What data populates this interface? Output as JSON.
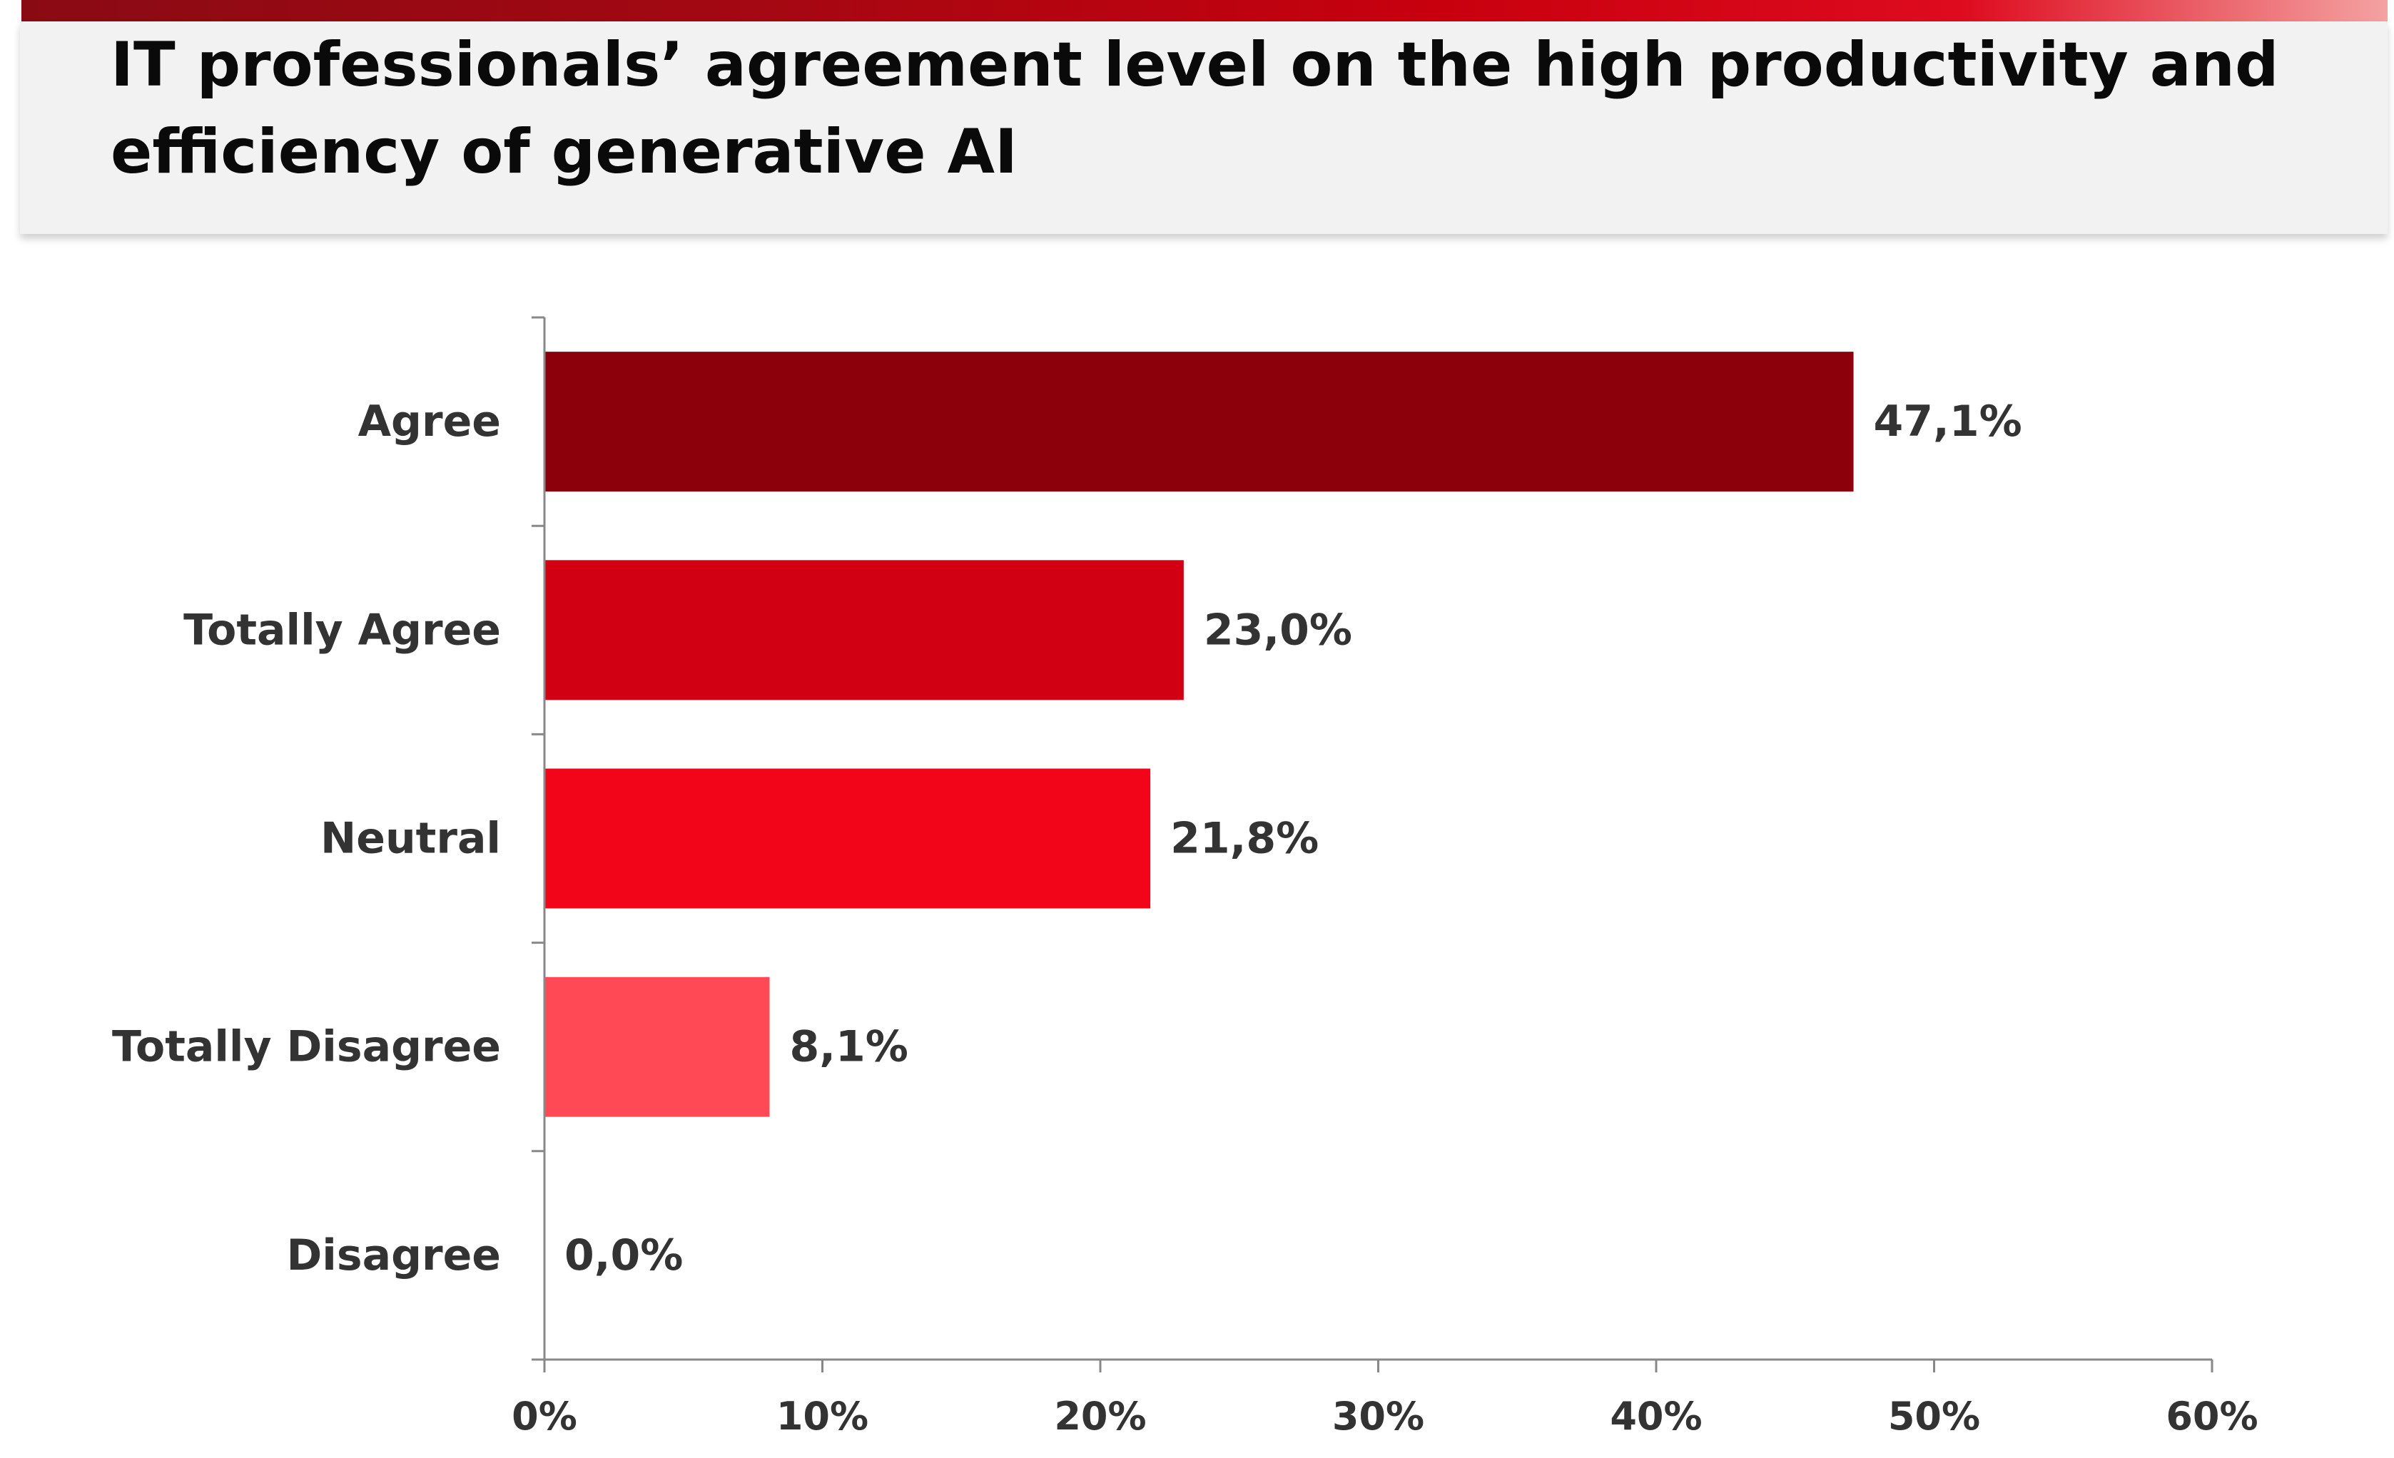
{
  "header": {
    "title": "IT professionals’ agreement level on the high productivity and efficiency of generative AI"
  },
  "chart_data": {
    "type": "bar",
    "orientation": "horizontal",
    "categories": [
      "Agree",
      "Totally Agree",
      "Neutral",
      "Totally Disagree",
      "Disagree"
    ],
    "values": [
      47.1,
      23.0,
      21.8,
      8.1,
      0.0
    ],
    "value_labels": [
      "47,1%",
      "23,0%",
      "21,8%",
      "8,1%",
      "0,0%"
    ],
    "bar_colors": [
      "#8b000b",
      "#d10013",
      "#f20519",
      "#ff4a55",
      "#ff8a90"
    ],
    "xlim": [
      0,
      60
    ],
    "x_ticks": [
      0,
      10,
      20,
      30,
      40,
      50,
      60
    ],
    "x_tick_labels": [
      "0%",
      "10%",
      "20%",
      "30%",
      "40%",
      "50%",
      "60%"
    ],
    "grid": false,
    "legend": "none",
    "axis_color": "#888888",
    "label_color": "#333333"
  }
}
